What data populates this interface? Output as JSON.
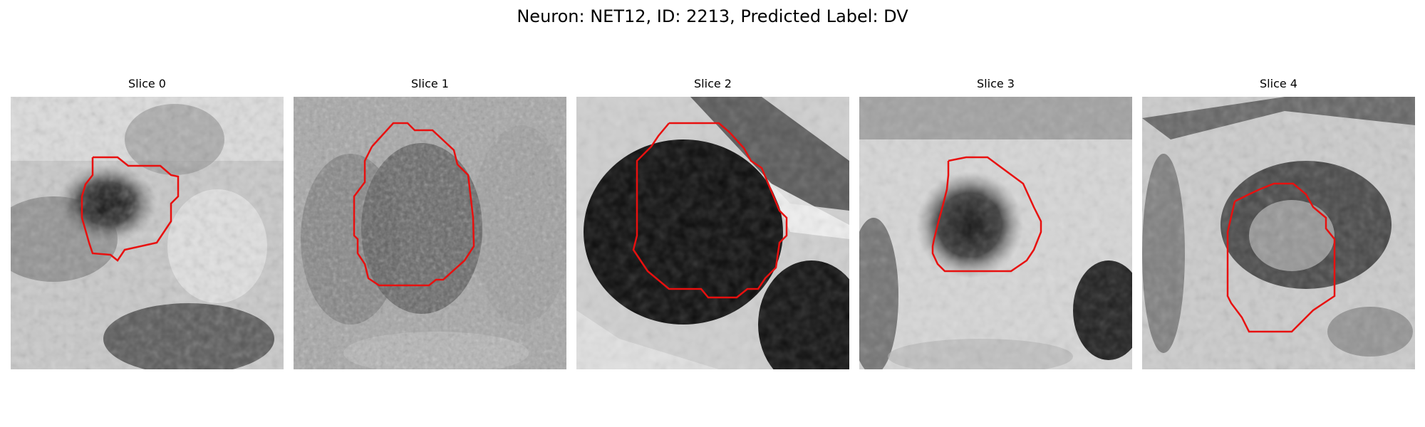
{
  "figure": {
    "title": "Neuron: NET12, ID: 2213, Predicted Label: DV"
  },
  "colors": {
    "contour": "#e8100f",
    "background": "#ffffff"
  },
  "panels": [
    {
      "title": "Slice 0"
    },
    {
      "title": "Slice 1"
    },
    {
      "title": "Slice 2"
    },
    {
      "title": "Slice 3"
    },
    {
      "title": "Slice 4"
    }
  ]
}
